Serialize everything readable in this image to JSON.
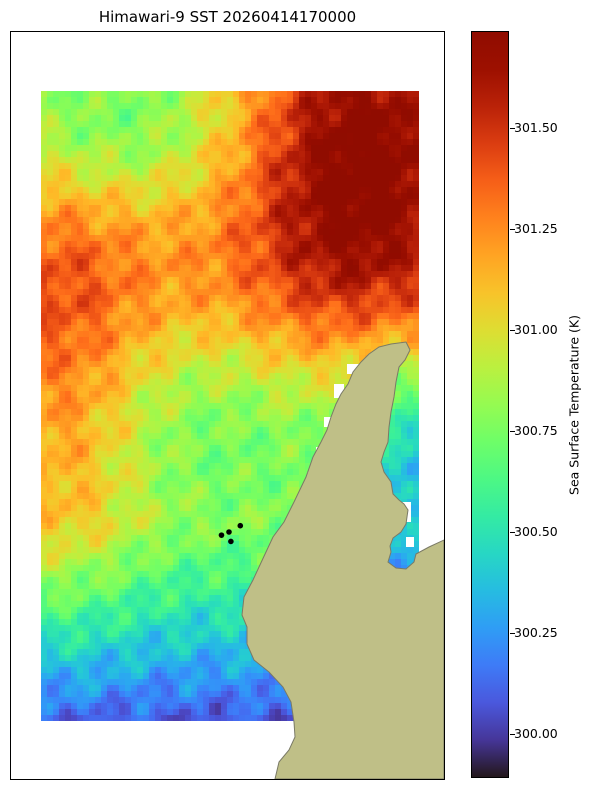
{
  "title": "Himawari-9 SST 20260414170000",
  "colorbar": {
    "label": "Sea Surface Temperature (K)",
    "min": 299.89,
    "max": 301.74,
    "ticks": [
      "300.00",
      "300.25",
      "300.50",
      "300.75",
      "301.00",
      "301.25",
      "301.50"
    ],
    "tick_values": [
      300.0,
      300.25,
      300.5,
      300.75,
      301.0,
      301.25,
      301.5
    ],
    "colormap": "turbo"
  },
  "colors": {
    "land": "#bfbf87",
    "coast": "#7a7a66",
    "station_marker": "#000000"
  },
  "stations": [
    {
      "lon": 0.48,
      "lat": 0.705
    },
    {
      "lon": 0.5,
      "lat": 0.7
    },
    {
      "lon": 0.53,
      "lat": 0.69
    },
    {
      "lon": 0.505,
      "lat": 0.715
    }
  ]
}
